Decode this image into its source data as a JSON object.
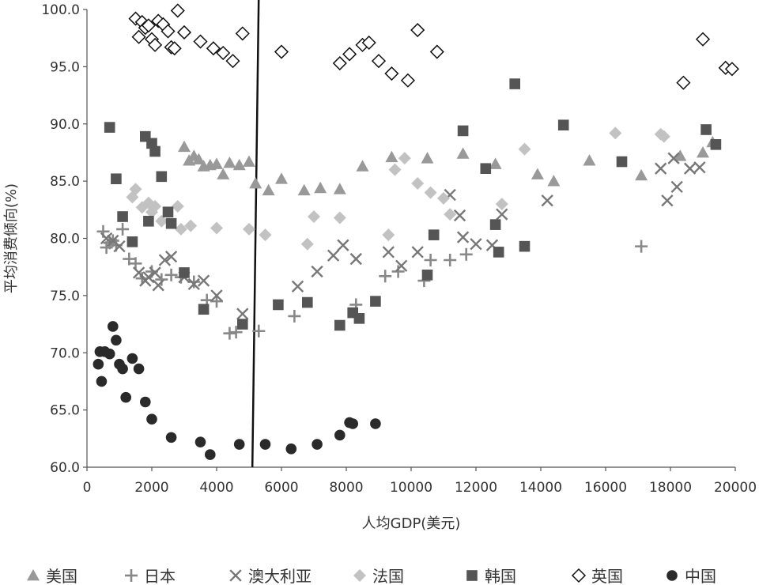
{
  "chart_data": {
    "type": "scatter",
    "title": "",
    "xlabel": "人均GDP(美元)",
    "ylabel": "平均消费倾向(%)",
    "xlim": [
      0,
      20000
    ],
    "ylim": [
      60,
      100
    ],
    "x_ticks": [
      0,
      2000,
      4000,
      6000,
      8000,
      10000,
      12000,
      14000,
      16000,
      18000,
      20000
    ],
    "x_tick_labels": [
      "0",
      "2000",
      "4000",
      "6000",
      "8000",
      "10000",
      "12000",
      "14000",
      "16000",
      "18000",
      "20000"
    ],
    "y_ticks": [
      60,
      65,
      70,
      75,
      80,
      85,
      90,
      95,
      100
    ],
    "y_tick_labels": [
      "60.0",
      "65.0",
      "70.0",
      "75.0",
      "80.0",
      "85.0",
      "90.0",
      "95.0",
      "100.0"
    ],
    "grid": false,
    "legend_position": "bottom",
    "reference_line_x": 5200,
    "series": [
      {
        "name": "美国",
        "marker": "triangle",
        "color": "#999999",
        "x": [
          3000,
          3150,
          3300,
          3450,
          3600,
          3800,
          4000,
          4200,
          4400,
          4700,
          5000,
          5200,
          5600,
          6000,
          6700,
          7200,
          7800,
          8500,
          9400,
          10500,
          11600,
          12600,
          13900,
          14400,
          15500,
          17100,
          18300,
          19000,
          19300
        ],
        "y": [
          88.0,
          86.8,
          87.2,
          86.9,
          86.3,
          86.4,
          86.5,
          85.6,
          86.6,
          86.4,
          86.7,
          84.8,
          84.2,
          85.2,
          84.2,
          84.4,
          84.3,
          86.3,
          87.1,
          87.0,
          87.4,
          86.5,
          85.6,
          85.0,
          86.8,
          85.5,
          87.2,
          87.5,
          88.4
        ]
      },
      {
        "name": "日本",
        "marker": "plus",
        "color": "#888888",
        "x": [
          500,
          600,
          700,
          800,
          900,
          1100,
          1300,
          1500,
          1700,
          2000,
          2300,
          2600,
          2900,
          3300,
          3700,
          4000,
          4400,
          4600,
          5300,
          6400,
          8300,
          9200,
          9600,
          10400,
          10600,
          11200,
          11700,
          17100
        ],
        "y": [
          80.6,
          79.2,
          79.6,
          79.8,
          79.4,
          80.8,
          78.2,
          77.8,
          76.5,
          77.1,
          76.4,
          76.8,
          76.6,
          76.2,
          74.6,
          74.5,
          71.7,
          71.8,
          71.9,
          73.2,
          74.2,
          76.7,
          77.1,
          76.3,
          78.1,
          78.1,
          78.6,
          79.3
        ]
      },
      {
        "name": "澳大利亚",
        "marker": "x",
        "color": "#777777",
        "x": [
          600,
          800,
          1000,
          1600,
          1800,
          1900,
          2100,
          2200,
          2400,
          2600,
          3000,
          3300,
          3600,
          4000,
          4800,
          6500,
          7100,
          7600,
          7900,
          8300,
          9300,
          9700,
          10200,
          11200,
          11500,
          11600,
          12000,
          12500,
          12800,
          14200,
          17700,
          17900,
          18100,
          18200,
          18600,
          18900
        ],
        "y": [
          80.0,
          79.8,
          79.3,
          77.0,
          76.3,
          76.6,
          77.0,
          75.9,
          78.1,
          78.4,
          76.6,
          76.0,
          76.3,
          75.0,
          73.4,
          75.8,
          77.1,
          78.5,
          79.4,
          78.2,
          78.8,
          77.6,
          78.8,
          83.8,
          82.0,
          80.1,
          79.5,
          79.4,
          82.1,
          83.3,
          86.1,
          83.3,
          87.0,
          84.5,
          86.1,
          86.2
        ]
      },
      {
        "name": "法国",
        "marker": "diamond",
        "color": "#c2c2c2",
        "x": [
          1400,
          1500,
          1700,
          1900,
          2000,
          2100,
          2300,
          2800,
          2900,
          3200,
          4000,
          5000,
          5500,
          6800,
          7000,
          7800,
          9300,
          9500,
          9800,
          10200,
          10600,
          11000,
          11200,
          12800,
          13500,
          16300,
          17700,
          17800
        ],
        "y": [
          83.6,
          84.3,
          82.7,
          83.1,
          82.3,
          82.8,
          81.5,
          82.8,
          80.8,
          81.1,
          80.9,
          80.8,
          80.3,
          79.5,
          81.9,
          81.8,
          80.3,
          86.0,
          87.0,
          84.8,
          84.0,
          83.5,
          82.1,
          83.0,
          87.8,
          89.2,
          89.1,
          88.9
        ]
      },
      {
        "name": "韩国",
        "marker": "square",
        "color": "#555555",
        "x": [
          700,
          900,
          1100,
          1400,
          1800,
          1900,
          2000,
          2100,
          2300,
          2500,
          2600,
          3000,
          3600,
          4800,
          5900,
          6800,
          7800,
          8200,
          8400,
          8900,
          10500,
          10700,
          11600,
          12300,
          12600,
          12700,
          13200,
          13500,
          14700,
          16500,
          19100,
          19400
        ],
        "y": [
          89.7,
          85.2,
          81.9,
          79.7,
          88.9,
          81.5,
          88.3,
          87.6,
          85.4,
          82.3,
          81.3,
          77.0,
          73.8,
          72.5,
          74.2,
          74.4,
          72.4,
          73.5,
          73.0,
          74.5,
          76.8,
          80.3,
          89.4,
          86.1,
          81.2,
          78.8,
          93.5,
          79.3,
          89.9,
          86.7,
          89.5,
          88.2
        ]
      },
      {
        "name": "英国",
        "marker": "diamond-open",
        "color": "#111111",
        "x": [
          1500,
          1600,
          1700,
          1800,
          1900,
          2000,
          2100,
          2200,
          2350,
          2500,
          2600,
          2700,
          2800,
          3000,
          3500,
          3900,
          4200,
          4500,
          4800,
          6000,
          7800,
          8100,
          8500,
          8700,
          9000,
          9400,
          9900,
          10200,
          10800,
          18400,
          19000,
          19700,
          19900
        ],
        "y": [
          99.2,
          97.6,
          98.9,
          98.4,
          98.6,
          97.4,
          96.9,
          99.0,
          98.7,
          98.1,
          96.7,
          96.6,
          99.9,
          98.0,
          97.2,
          96.6,
          96.2,
          95.5,
          97.9,
          96.3,
          95.3,
          96.1,
          96.9,
          97.1,
          95.5,
          94.4,
          93.8,
          98.2,
          96.3,
          93.6,
          97.4,
          94.9,
          94.8
        ]
      },
      {
        "name": "中国",
        "marker": "circle",
        "color": "#2a2a2a",
        "x": [
          350,
          400,
          450,
          550,
          700,
          800,
          900,
          1000,
          1100,
          1200,
          1400,
          1600,
          1800,
          2000,
          2600,
          3500,
          3800,
          4700,
          5500,
          6300,
          7100,
          7800,
          8100,
          8200,
          8900
        ],
        "y": [
          69.0,
          70.1,
          67.5,
          70.1,
          69.9,
          72.3,
          71.1,
          69.0,
          68.6,
          66.1,
          69.5,
          68.6,
          65.7,
          64.2,
          62.6,
          62.2,
          61.1,
          62.0,
          62.0,
          61.6,
          62.0,
          62.8,
          63.9,
          63.8,
          63.8
        ]
      }
    ]
  }
}
